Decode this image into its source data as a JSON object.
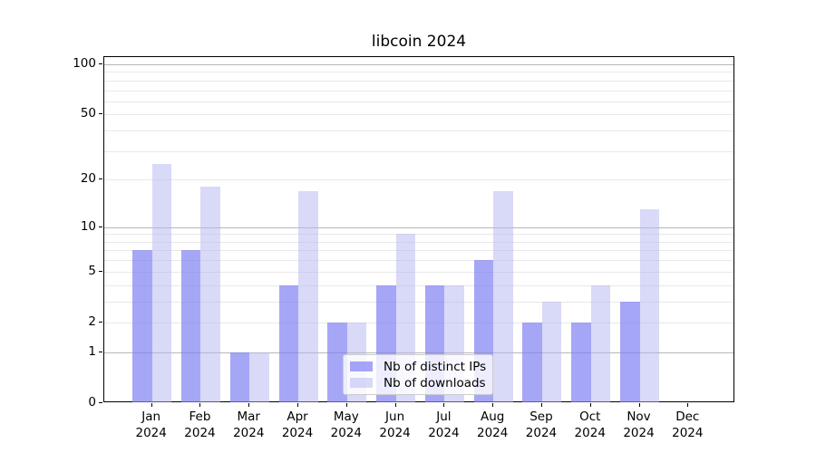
{
  "title": "libcoin 2024",
  "colors": {
    "ips_bar_sampled": "#a6a6f4",
    "downloads_bar_sampled": "#d9d9f9",
    "grid_major": "#b7b7b7",
    "grid_minor": "#e8e8e8",
    "axis": "#000000",
    "legend_border": "#cccccc",
    "text": "#000000"
  },
  "chart_data": {
    "type": "bar",
    "title": "libcoin 2024",
    "categories": [
      "Jan 2024",
      "Feb 2024",
      "Mar 2024",
      "Apr 2024",
      "May 2024",
      "Jun 2024",
      "Jul 2024",
      "Aug 2024",
      "Sep 2024",
      "Oct 2024",
      "Nov 2024",
      "Dec 2024"
    ],
    "series": [
      {
        "name": "Nb of distinct IPs",
        "color": "#8080f3",
        "alpha": 0.7,
        "values": [
          7,
          7,
          1,
          4,
          2,
          4,
          4,
          6,
          2,
          2,
          3,
          0
        ]
      },
      {
        "name": "Nb of downloads",
        "color": "#b4b4f2",
        "alpha": 0.5,
        "values": [
          25,
          18,
          1,
          17,
          2,
          9,
          4,
          17,
          3,
          4,
          13,
          0
        ]
      }
    ],
    "xlabel": "",
    "ylabel": "",
    "yscale": "log1p",
    "ylim": [
      0,
      111.5
    ],
    "yticks": [
      0,
      1,
      2,
      5,
      10,
      20,
      50,
      100
    ],
    "grid": "on",
    "grid_major_at": [
      1,
      10,
      100
    ],
    "grid_minor_at": [
      2,
      3,
      4,
      5,
      6,
      7,
      8,
      9,
      20,
      30,
      40,
      50,
      60,
      70,
      80,
      90
    ],
    "legend_position": "lower center"
  }
}
